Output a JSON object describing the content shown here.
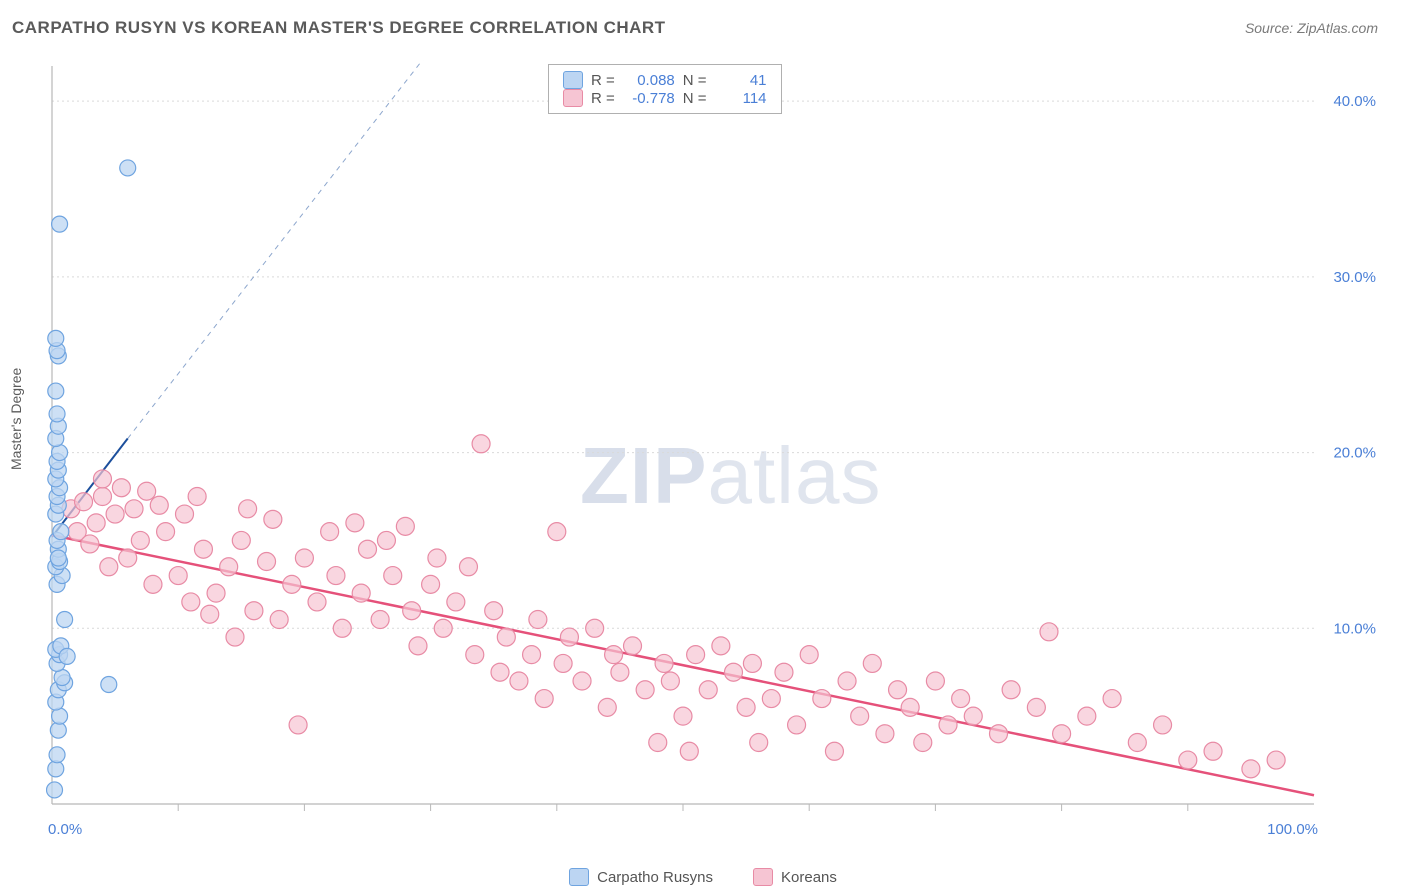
{
  "title": "CARPATHO RUSYN VS KOREAN MASTER'S DEGREE CORRELATION CHART",
  "source": "Source: ZipAtlas.com",
  "ylabel": "Master's Degree",
  "watermark_bold": "ZIP",
  "watermark_light": "atlas",
  "chart": {
    "type": "scatter",
    "xlim": [
      0,
      100
    ],
    "ylim": [
      0,
      42
    ],
    "xticks": [
      0,
      100
    ],
    "xtick_labels": [
      "0.0%",
      "100.0%"
    ],
    "xtick_minor": [
      10,
      20,
      30,
      40,
      50,
      60,
      70,
      80,
      90
    ],
    "yticks": [
      10,
      20,
      30,
      40
    ],
    "ytick_labels": [
      "10.0%",
      "20.0%",
      "30.0%",
      "40.0%"
    ],
    "grid_color": "#d9d9d9",
    "axis_color": "#b8b8b8",
    "background_color": "#ffffff",
    "series": [
      {
        "name": "Carpatho Rusyns",
        "color_fill": "#bcd5f2",
        "color_stroke": "#6fa4e0",
        "marker_radius": 8,
        "marker_opacity": 0.75,
        "trend": {
          "x1": 0,
          "y1": 15.2,
          "x2": 6,
          "y2": 20.8,
          "dash_extend_x": 42,
          "dash_extend_y": 54,
          "color": "#1c4f9c",
          "width": 2
        },
        "R": "0.088",
        "N": "41",
        "points": [
          [
            0.2,
            0.8
          ],
          [
            0.3,
            2.0
          ],
          [
            0.4,
            2.8
          ],
          [
            0.5,
            4.2
          ],
          [
            0.6,
            5.0
          ],
          [
            0.3,
            5.8
          ],
          [
            0.5,
            6.5
          ],
          [
            1.0,
            6.9
          ],
          [
            0.8,
            7.2
          ],
          [
            0.4,
            8.0
          ],
          [
            0.6,
            8.5
          ],
          [
            0.3,
            8.8
          ],
          [
            0.7,
            9.0
          ],
          [
            1.2,
            8.4
          ],
          [
            4.5,
            6.8
          ],
          [
            1.0,
            10.5
          ],
          [
            0.4,
            12.5
          ],
          [
            0.8,
            13.0
          ],
          [
            0.3,
            13.5
          ],
          [
            0.6,
            13.8
          ],
          [
            0.5,
            14.5
          ],
          [
            0.4,
            15.0
          ],
          [
            0.7,
            15.5
          ],
          [
            0.3,
            16.5
          ],
          [
            0.5,
            17.0
          ],
          [
            0.4,
            17.5
          ],
          [
            0.6,
            18.0
          ],
          [
            0.3,
            18.5
          ],
          [
            0.5,
            19.0
          ],
          [
            0.4,
            19.5
          ],
          [
            0.6,
            20.0
          ],
          [
            0.3,
            20.8
          ],
          [
            0.5,
            21.5
          ],
          [
            0.4,
            22.2
          ],
          [
            0.3,
            23.5
          ],
          [
            0.5,
            25.5
          ],
          [
            0.4,
            25.8
          ],
          [
            0.3,
            26.5
          ],
          [
            0.6,
            33.0
          ],
          [
            6.0,
            36.2
          ],
          [
            0.5,
            14.0
          ]
        ]
      },
      {
        "name": "Koreans",
        "color_fill": "#f6c5d3",
        "color_stroke": "#e88ba5",
        "marker_radius": 9,
        "marker_opacity": 0.7,
        "trend": {
          "x1": 0,
          "y1": 15.3,
          "x2": 100,
          "y2": 0.5,
          "color": "#e5517a",
          "width": 2.5
        },
        "R": "-0.778",
        "N": "114",
        "points": [
          [
            1.5,
            16.8
          ],
          [
            2.0,
            15.5
          ],
          [
            2.5,
            17.2
          ],
          [
            3.0,
            14.8
          ],
          [
            3.5,
            16.0
          ],
          [
            4.0,
            17.5
          ],
          [
            4.5,
            13.5
          ],
          [
            5.0,
            16.5
          ],
          [
            5.5,
            18.0
          ],
          [
            6.0,
            14.0
          ],
          [
            6.5,
            16.8
          ],
          [
            7.0,
            15.0
          ],
          [
            7.5,
            17.8
          ],
          [
            8.0,
            12.5
          ],
          [
            9.0,
            15.5
          ],
          [
            10.0,
            13.0
          ],
          [
            10.5,
            16.5
          ],
          [
            11.0,
            11.5
          ],
          [
            12.0,
            14.5
          ],
          [
            12.5,
            10.8
          ],
          [
            13.0,
            12.0
          ],
          [
            14.0,
            13.5
          ],
          [
            14.5,
            9.5
          ],
          [
            15.0,
            15.0
          ],
          [
            16.0,
            11.0
          ],
          [
            17.0,
            13.8
          ],
          [
            17.5,
            16.2
          ],
          [
            18.0,
            10.5
          ],
          [
            19.0,
            12.5
          ],
          [
            19.5,
            4.5
          ],
          [
            20.0,
            14.0
          ],
          [
            21.0,
            11.5
          ],
          [
            22.0,
            15.5
          ],
          [
            22.5,
            13.0
          ],
          [
            23.0,
            10.0
          ],
          [
            24.0,
            16.0
          ],
          [
            24.5,
            12.0
          ],
          [
            25.0,
            14.5
          ],
          [
            26.0,
            10.5
          ],
          [
            27.0,
            13.0
          ],
          [
            28.0,
            15.8
          ],
          [
            28.5,
            11.0
          ],
          [
            29.0,
            9.0
          ],
          [
            30.0,
            12.5
          ],
          [
            30.5,
            14.0
          ],
          [
            31.0,
            10.0
          ],
          [
            32.0,
            11.5
          ],
          [
            33.0,
            13.5
          ],
          [
            33.5,
            8.5
          ],
          [
            34.0,
            20.5
          ],
          [
            35.0,
            11.0
          ],
          [
            35.5,
            7.5
          ],
          [
            36.0,
            9.5
          ],
          [
            37.0,
            7.0
          ],
          [
            38.0,
            8.5
          ],
          [
            38.5,
            10.5
          ],
          [
            39.0,
            6.0
          ],
          [
            40.0,
            15.5
          ],
          [
            40.5,
            8.0
          ],
          [
            41.0,
            9.5
          ],
          [
            42.0,
            7.0
          ],
          [
            43.0,
            10.0
          ],
          [
            44.0,
            5.5
          ],
          [
            44.5,
            8.5
          ],
          [
            45.0,
            7.5
          ],
          [
            46.0,
            9.0
          ],
          [
            47.0,
            6.5
          ],
          [
            48.0,
            3.5
          ],
          [
            48.5,
            8.0
          ],
          [
            49.0,
            7.0
          ],
          [
            50.0,
            5.0
          ],
          [
            50.5,
            3.0
          ],
          [
            51.0,
            8.5
          ],
          [
            52.0,
            6.5
          ],
          [
            53.0,
            9.0
          ],
          [
            54.0,
            7.5
          ],
          [
            55.0,
            5.5
          ],
          [
            55.5,
            8.0
          ],
          [
            56.0,
            3.5
          ],
          [
            57.0,
            6.0
          ],
          [
            58.0,
            7.5
          ],
          [
            59.0,
            4.5
          ],
          [
            60.0,
            8.5
          ],
          [
            61.0,
            6.0
          ],
          [
            62.0,
            3.0
          ],
          [
            63.0,
            7.0
          ],
          [
            64.0,
            5.0
          ],
          [
            65.0,
            8.0
          ],
          [
            66.0,
            4.0
          ],
          [
            67.0,
            6.5
          ],
          [
            68.0,
            5.5
          ],
          [
            69.0,
            3.5
          ],
          [
            70.0,
            7.0
          ],
          [
            71.0,
            4.5
          ],
          [
            72.0,
            6.0
          ],
          [
            73.0,
            5.0
          ],
          [
            75.0,
            4.0
          ],
          [
            76.0,
            6.5
          ],
          [
            78.0,
            5.5
          ],
          [
            79.0,
            9.8
          ],
          [
            80.0,
            4.0
          ],
          [
            82.0,
            5.0
          ],
          [
            84.0,
            6.0
          ],
          [
            86.0,
            3.5
          ],
          [
            88.0,
            4.5
          ],
          [
            90.0,
            2.5
          ],
          [
            92.0,
            3.0
          ],
          [
            95.0,
            2.0
          ],
          [
            97.0,
            2.5
          ],
          [
            4.0,
            18.5
          ],
          [
            8.5,
            17.0
          ],
          [
            11.5,
            17.5
          ],
          [
            15.5,
            16.8
          ],
          [
            26.5,
            15.0
          ]
        ]
      }
    ]
  },
  "legend_top": {
    "r_label": "R =",
    "n_label": "N ="
  },
  "legend_bottom": [
    {
      "label": "Carpatho Rusyns",
      "fill": "#bcd5f2",
      "stroke": "#6fa4e0"
    },
    {
      "label": "Koreans",
      "fill": "#f6c5d3",
      "stroke": "#e88ba5"
    }
  ]
}
